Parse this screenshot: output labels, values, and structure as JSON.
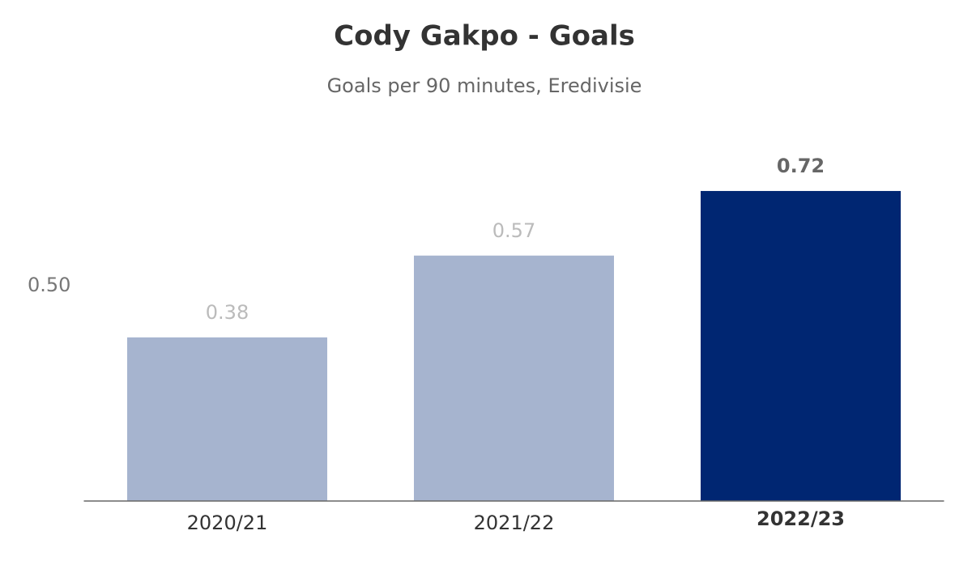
{
  "chart_data": {
    "type": "bar",
    "title": "Cody Gakpo - Goals",
    "subtitle": "Goals per 90 minutes, Eredivisie",
    "categories": [
      "2020/21",
      "2021/22",
      "2022/23"
    ],
    "values": [
      0.38,
      0.57,
      0.72
    ],
    "colors": [
      "#a6b4cf",
      "#a6b4cf",
      "#002672"
    ],
    "ylim": [
      0,
      0.8
    ],
    "yticks": [
      {
        "value": 0.5,
        "label": "0.50"
      }
    ],
    "grid": false
  }
}
